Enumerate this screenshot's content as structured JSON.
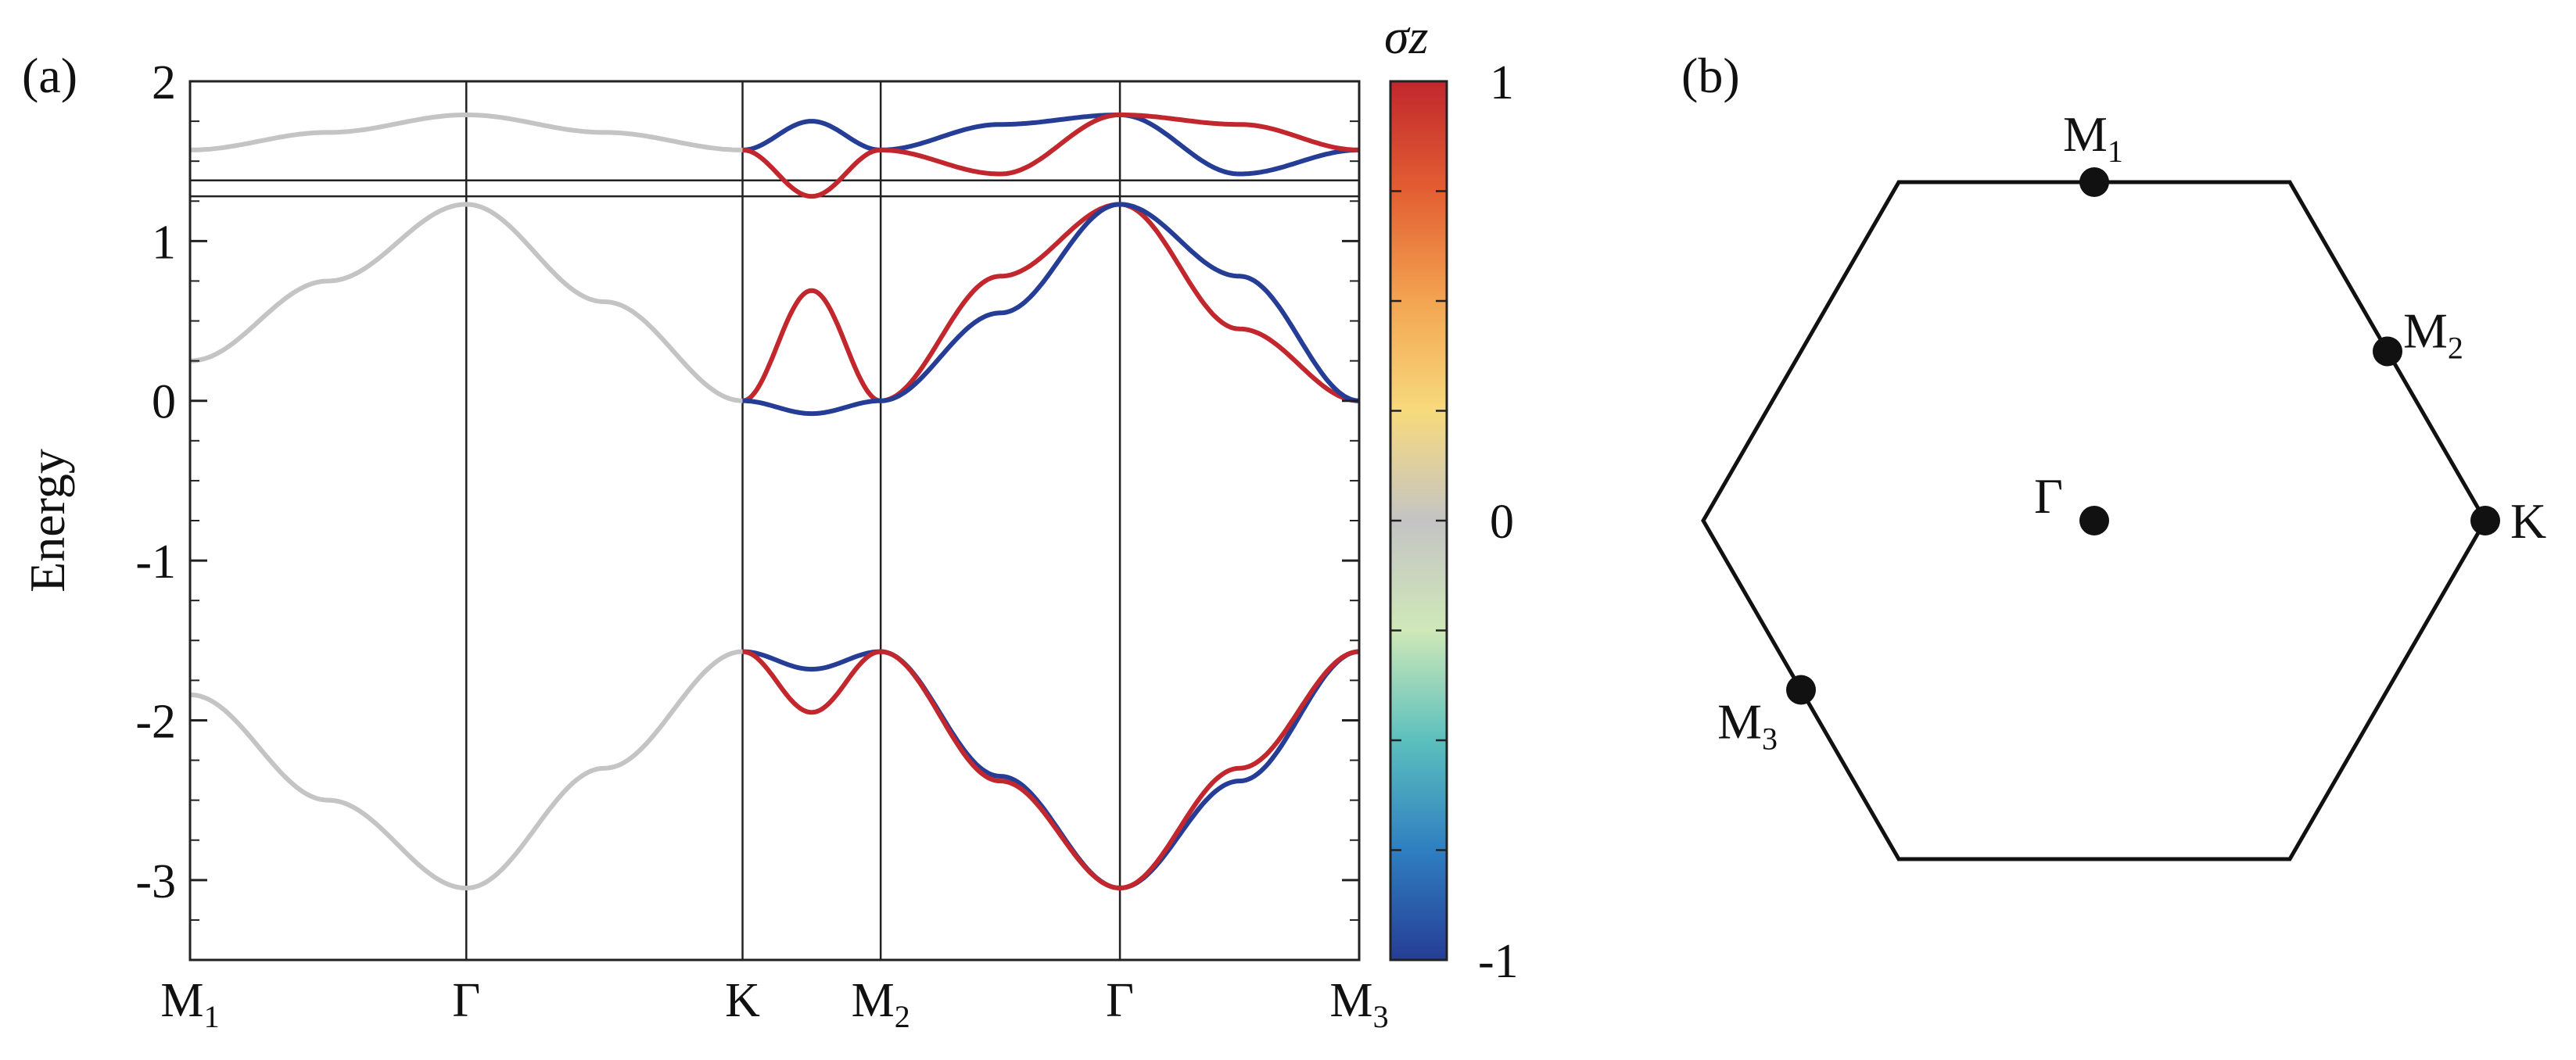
{
  "chart_data": [
    {
      "type": "line",
      "panel_label": "(a)",
      "ylabel": "Energy",
      "ylim": [
        -3.5,
        2.0
      ],
      "y_ticks": [
        "2",
        "1",
        "0",
        "-1",
        "-2",
        "-3"
      ],
      "x_ticks": [
        {
          "base": "M",
          "sub": "1",
          "pos": 0.0
        },
        {
          "base": "Γ",
          "sub": "",
          "pos": 1.0
        },
        {
          "base": "K",
          "sub": "",
          "pos": 2.0
        },
        {
          "base": "M",
          "sub": "2",
          "pos": 2.5
        },
        {
          "base": "Γ",
          "sub": "",
          "pos": 3.366
        },
        {
          "base": "M",
          "sub": "3",
          "pos": 4.232
        }
      ],
      "horizontal_lines": [
        1.38,
        1.28
      ],
      "series": [
        {
          "band": "gray-upper",
          "color": "#c4c4c4",
          "x": [
            0.0,
            0.5,
            1.0,
            1.5,
            2.0
          ],
          "y": [
            1.57,
            1.68,
            1.79,
            1.68,
            1.57
          ]
        },
        {
          "band": "gray-middle",
          "color": "#c4c4c4",
          "x": [
            0.0,
            0.5,
            1.0,
            1.5,
            2.0
          ],
          "y": [
            0.25,
            0.75,
            1.23,
            0.62,
            0.0
          ]
        },
        {
          "band": "gray-lower",
          "color": "#c4c4c4",
          "x": [
            0.0,
            0.5,
            1.0,
            1.5,
            2.0
          ],
          "y": [
            -1.84,
            -2.5,
            -3.05,
            -2.3,
            -1.57
          ]
        },
        {
          "band": "blue-upper",
          "color": "#263d96",
          "x": [
            2.0,
            2.25,
            2.5,
            2.933,
            3.366,
            3.799,
            4.232
          ],
          "y": [
            1.57,
            1.75,
            1.57,
            1.73,
            1.79,
            1.42,
            1.57
          ]
        },
        {
          "band": "red-upper",
          "color": "#c1272d",
          "x": [
            2.0,
            2.25,
            2.5,
            2.933,
            3.366,
            3.799,
            4.232
          ],
          "y": [
            1.57,
            1.28,
            1.57,
            1.42,
            1.79,
            1.73,
            1.57
          ]
        },
        {
          "band": "red-middle",
          "color": "#c1272d",
          "x": [
            2.0,
            2.25,
            2.5,
            2.933,
            3.366,
            3.799,
            4.232
          ],
          "y": [
            0.0,
            0.69,
            0.0,
            0.78,
            1.23,
            0.45,
            0.0
          ]
        },
        {
          "band": "blue-middle",
          "color": "#263d96",
          "x": [
            2.0,
            2.25,
            2.5,
            2.933,
            3.366,
            3.799,
            4.232
          ],
          "y": [
            0.0,
            -0.08,
            0.0,
            0.55,
            1.23,
            0.78,
            0.0
          ]
        },
        {
          "band": "blue-lower",
          "color": "#263d96",
          "x": [
            2.0,
            2.25,
            2.5,
            2.933,
            3.366,
            3.799,
            4.232
          ],
          "y": [
            -1.57,
            -1.68,
            -1.57,
            -2.35,
            -3.05,
            -2.38,
            -1.57
          ]
        },
        {
          "band": "red-lower",
          "color": "#c1272d",
          "x": [
            2.0,
            2.25,
            2.5,
            2.933,
            3.366,
            3.799,
            4.232
          ],
          "y": [
            -1.57,
            -1.95,
            -1.57,
            -2.38,
            -3.05,
            -2.3,
            -1.57
          ]
        }
      ],
      "colorbar": {
        "title": "σz",
        "ticks": [
          "1",
          "0",
          "-1"
        ],
        "range": [
          -1,
          1
        ],
        "colors": [
          "#263d96",
          "#2f7fc1",
          "#5bc0be",
          "#cfe8b8",
          "#c4c4c4",
          "#f7da7c",
          "#f3a451",
          "#e35f32",
          "#c1272d"
        ]
      }
    },
    {
      "type": "diagram",
      "panel_label": "(b)",
      "shape": "hexagon",
      "points": [
        {
          "base": "M",
          "sub": "1",
          "xy": [
            0.0,
            0.866
          ]
        },
        {
          "base": "M",
          "sub": "2",
          "xy": [
            0.75,
            0.433
          ]
        },
        {
          "base": "K",
          "sub": "",
          "xy": [
            1.0,
            0.0
          ]
        },
        {
          "base": "Γ",
          "sub": "",
          "xy": [
            0.0,
            0.0
          ]
        },
        {
          "base": "M",
          "sub": "3",
          "xy": [
            -0.75,
            -0.433
          ]
        }
      ]
    }
  ]
}
